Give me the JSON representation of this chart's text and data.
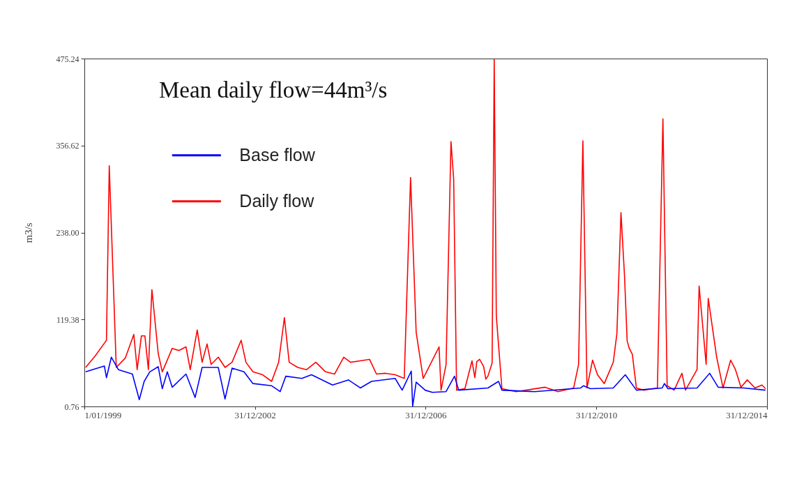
{
  "chart_data": {
    "type": "line",
    "annotations": [
      "Mean daily flow=44m³/s"
    ],
    "ylabel": "m3/s",
    "xlim": [
      "1999-01-01",
      "2014-12-31"
    ],
    "xticks": [
      {
        "value": "1999-01-01",
        "label": "1/01/1999"
      },
      {
        "value": "2002-12-31",
        "label": "31/12/2002"
      },
      {
        "value": "2006-12-31",
        "label": "31/12/2006"
      },
      {
        "value": "2010-12-31",
        "label": "31/12/2010"
      },
      {
        "value": "2014-12-31",
        "label": "31/12/2014"
      }
    ],
    "ylim": [
      0.76,
      475.24
    ],
    "yticks": [
      0.76,
      119.38,
      {
        "value": 238,
        "label": "238.00"
      },
      356.62,
      475.24
    ],
    "legend": "top left",
    "line_style": "solid",
    "series": [
      {
        "name": "Base flow",
        "color": "#0000ff",
        "x": [
          "1999-01-12",
          "1999-06-21",
          "1999-07-09",
          "1999-08-20",
          "1999-10-19",
          "2000-02-16",
          "2000-04-15",
          "2000-05-27",
          "2000-07-14",
          "2000-09-24",
          "2000-10-29",
          "2000-12-11",
          "2001-01-22",
          "2001-05-20",
          "2001-08-06",
          "2001-10-05",
          "2002-02-20",
          "2002-04-19",
          "2002-06-18",
          "2002-09-28",
          "2002-12-14",
          "2003-05-23",
          "2003-08-04",
          "2003-09-21",
          "2004-02-06",
          "2004-04-28",
          "2004-10-25",
          "2005-03-10",
          "2005-06-20",
          "2005-09-24",
          "2006-04-14",
          "2006-06-13",
          "2006-08-30",
          "2006-09-11",
          "2006-10-11",
          "2006-12-27",
          "2007-02-26",
          "2007-06-24",
          "2007-09-04",
          "2007-10-10",
          "2008-06-16",
          "2008-09-15",
          "2008-10-14",
          "2009-07-21",
          "2010-08-19",
          "2010-09-12",
          "2010-11-11",
          "2011-05-25",
          "2011-09-05",
          "2011-12-09",
          "2012-07-17",
          "2012-08-05",
          "2012-09-04",
          "2013-05-11",
          "2013-08-27",
          "2013-11-08",
          "2014-06-15",
          "2014-12-18"
        ],
        "values": [
          48,
          56,
          40,
          68,
          51,
          45,
          10,
          35,
          48,
          55,
          25,
          48,
          27,
          45,
          13,
          54,
          54,
          11,
          53,
          48,
          32,
          29,
          21,
          42,
          39,
          44,
          30,
          37,
          26,
          35,
          39,
          23,
          49,
          1,
          34,
          23,
          20,
          21,
          42,
          23,
          26,
          35,
          23,
          21,
          26,
          29,
          25,
          26,
          44,
          23,
          26,
          32,
          25,
          26,
          46,
          27,
          26,
          23
        ]
      },
      {
        "name": "Daily flow",
        "color": "#ff0000",
        "x": [
          "1999-01-12",
          "1999-04-05",
          "1999-07-09",
          "1999-08-02",
          "1999-10-01",
          "1999-12-18",
          "2000-02-28",
          "2000-03-28",
          "2000-05-03",
          "2000-06-02",
          "2000-07-02",
          "2000-08-01",
          "2000-09-24",
          "2000-10-29",
          "2001-01-22",
          "2001-03-21",
          "2001-05-20",
          "2001-06-25",
          "2001-08-24",
          "2001-10-05",
          "2001-11-16",
          "2001-12-21",
          "2002-02-20",
          "2002-04-19",
          "2002-06-18",
          "2002-09-04",
          "2002-10-15",
          "2002-12-14",
          "2003-03-07",
          "2003-05-23",
          "2003-07-22",
          "2003-09-09",
          "2003-10-20",
          "2004-01-01",
          "2004-03-17",
          "2004-06-04",
          "2004-08-26",
          "2004-11-12",
          "2005-01-29",
          "2005-03-28",
          "2005-06-20",
          "2005-09-07",
          "2005-11-05",
          "2006-01-22",
          "2006-04-14",
          "2006-07-01",
          "2006-08-24",
          "2006-10-11",
          "2006-12-10",
          "2007-04-25",
          "2007-05-12",
          "2007-06-24",
          "2007-08-05",
          "2007-08-28",
          "2007-09-22",
          "2007-12-02",
          "2008-02-01",
          "2008-02-25",
          "2008-03-13",
          "2008-04-06",
          "2008-05-11",
          "2008-05-29",
          "2008-06-16",
          "2008-07-22",
          "2008-08-09",
          "2008-08-27",
          "2008-10-14",
          "2009-02-12",
          "2009-10-19",
          "2010-02-05",
          "2010-06-20",
          "2010-08-01",
          "2010-09-07",
          "2010-10-12",
          "2010-11-29",
          "2011-01-10",
          "2011-03-09",
          "2011-05-25",
          "2011-06-25",
          "2011-07-30",
          "2011-08-29",
          "2011-09-21",
          "2011-10-09",
          "2011-11-04",
          "2011-12-09",
          "2012-02-08",
          "2012-06-06",
          "2012-07-23",
          "2012-08-28",
          "2012-10-27",
          "2013-01-02",
          "2013-02-01",
          "2013-05-11",
          "2013-05-29",
          "2013-07-28",
          "2013-08-15",
          "2013-10-26",
          "2013-12-19",
          "2014-02-23",
          "2014-04-05",
          "2014-05-22",
          "2014-07-15",
          "2014-09-19",
          "2014-11-18",
          "2014-12-18"
        ],
        "values": [
          54,
          70,
          91,
          329,
          54,
          67,
          99,
          51,
          97,
          97,
          51,
          160,
          73,
          48,
          80,
          77,
          82,
          51,
          105,
          61,
          86,
          58,
          68,
          54,
          61,
          91,
          61,
          48,
          44,
          35,
          61,
          122,
          61,
          54,
          51,
          61,
          48,
          45,
          68,
          61,
          63,
          65,
          45,
          46,
          44,
          39,
          313,
          102,
          39,
          82,
          23,
          58,
          362,
          311,
          23,
          25,
          63,
          40,
          62,
          65,
          55,
          38,
          42,
          60,
          474,
          124,
          25,
          21,
          27,
          21,
          26,
          58,
          363,
          26,
          64,
          44,
          32,
          61,
          100,
          265,
          180,
          90,
          80,
          72,
          26,
          23,
          26,
          393,
          29,
          23,
          46,
          23,
          51,
          165,
          58,
          148,
          68,
          26,
          64,
          51,
          27,
          37,
          26,
          30,
          25
        ]
      }
    ]
  }
}
